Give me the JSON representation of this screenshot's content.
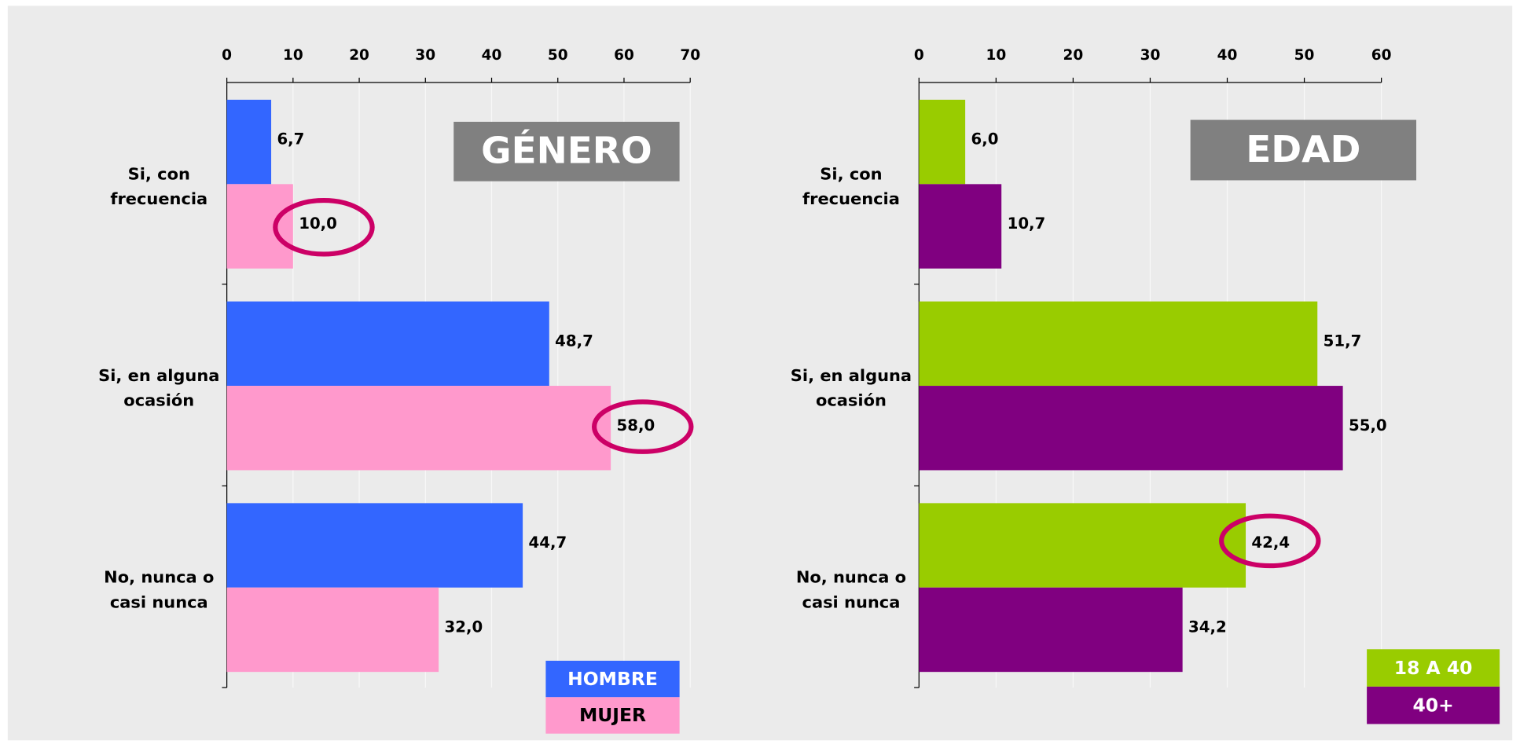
{
  "chart_data": [
    {
      "type": "bar",
      "title": "GÉNERO",
      "categories": [
        "Si, con\nfrecuencia",
        "Si, en alguna\nocasión",
        "No, nunca o\ncasi nunca"
      ],
      "series": [
        {
          "name": "HOMBRE",
          "color": "#3366ff",
          "values": [
            6.7,
            48.7,
            44.7
          ],
          "value_labels": [
            "6,7",
            "48,7",
            "44,7"
          ]
        },
        {
          "name": "MUJER",
          "color": "#ff99cc",
          "values": [
            10.0,
            58.0,
            32.0
          ],
          "value_labels": [
            "10,0",
            "58,0",
            "32,0"
          ]
        }
      ],
      "xlim": [
        0,
        70
      ],
      "xticks": [
        0,
        10,
        20,
        30,
        40,
        50,
        60,
        70
      ]
    },
    {
      "type": "bar",
      "title": "EDAD",
      "categories": [
        "Si, con\nfrecuencia",
        "Si, en alguna\nocasión",
        "No, nunca o\ncasi nunca"
      ],
      "series": [
        {
          "name": "18 A 40",
          "color": "#99cc00",
          "values": [
            6.0,
            51.7,
            42.4
          ],
          "value_labels": [
            "6,0",
            "51,7",
            "42,4"
          ]
        },
        {
          "name": "40+",
          "color": "#800080",
          "values": [
            10.7,
            55.0,
            34.2
          ],
          "value_labels": [
            "10,7",
            "55,0",
            "34,2"
          ]
        }
      ],
      "xlim": [
        0,
        60
      ],
      "xticks": [
        0,
        10,
        20,
        30,
        40,
        50,
        60
      ]
    }
  ]
}
